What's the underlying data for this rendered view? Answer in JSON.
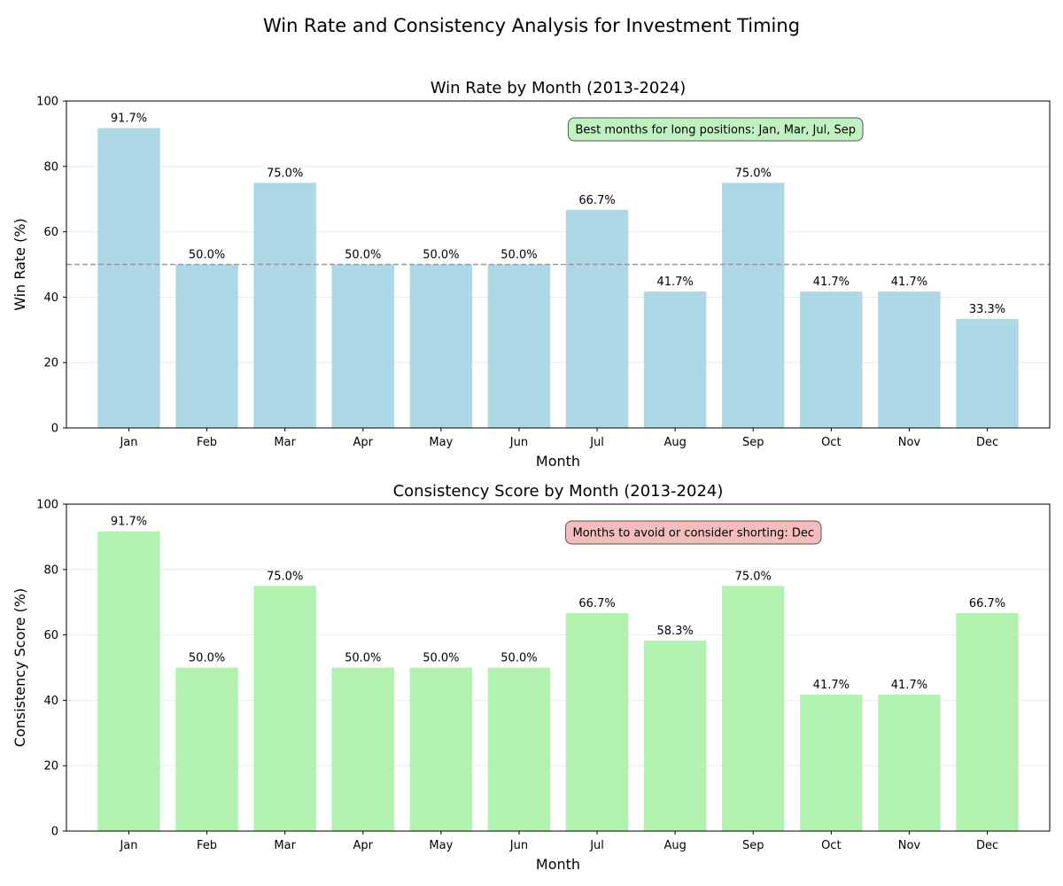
{
  "figure": {
    "suptitle": "Win Rate and Consistency Analysis for Investment Timing"
  },
  "chart_data": [
    {
      "type": "bar",
      "title": "Win Rate by Month (2013-2024)",
      "xlabel": "Month",
      "ylabel": "Win Rate (%)",
      "ylim": [
        0,
        100
      ],
      "yticks": [
        0,
        20,
        40,
        60,
        80,
        100
      ],
      "categories": [
        "Jan",
        "Feb",
        "Mar",
        "Apr",
        "May",
        "Jun",
        "Jul",
        "Aug",
        "Sep",
        "Oct",
        "Nov",
        "Dec"
      ],
      "values": [
        91.7,
        50.0,
        75.0,
        50.0,
        50.0,
        50.0,
        66.7,
        41.7,
        75.0,
        41.7,
        41.7,
        33.3
      ],
      "value_labels": [
        "91.7%",
        "50.0%",
        "75.0%",
        "50.0%",
        "50.0%",
        "50.0%",
        "66.7%",
        "41.7%",
        "75.0%",
        "41.7%",
        "41.7%",
        "33.3%"
      ],
      "bar_color": "#add8e6",
      "reference_line": 50,
      "reference_line_color": "#999999",
      "grid": "y",
      "annotation": {
        "text": "Best months for long positions: Jan, Mar, Jul, Sep",
        "fill": "#c1f0c1",
        "placement": "top-right"
      }
    },
    {
      "type": "bar",
      "title": "Consistency Score by Month (2013-2024)",
      "xlabel": "Month",
      "ylabel": "Consistency Score (%)",
      "ylim": [
        0,
        100
      ],
      "yticks": [
        0,
        20,
        40,
        60,
        80,
        100
      ],
      "categories": [
        "Jan",
        "Feb",
        "Mar",
        "Apr",
        "May",
        "Jun",
        "Jul",
        "Aug",
        "Sep",
        "Oct",
        "Nov",
        "Dec"
      ],
      "values": [
        91.7,
        50.0,
        75.0,
        50.0,
        50.0,
        50.0,
        66.7,
        58.3,
        75.0,
        41.7,
        41.7,
        66.7
      ],
      "value_labels": [
        "91.7%",
        "50.0%",
        "75.0%",
        "50.0%",
        "50.0%",
        "50.0%",
        "66.7%",
        "58.3%",
        "75.0%",
        "41.7%",
        "41.7%",
        "66.7%"
      ],
      "bar_color": "#b1f2b1",
      "grid": "y",
      "annotation": {
        "text": "Months to avoid or consider shorting: Dec",
        "fill": "#f5bcbc",
        "placement": "top-right"
      }
    }
  ]
}
